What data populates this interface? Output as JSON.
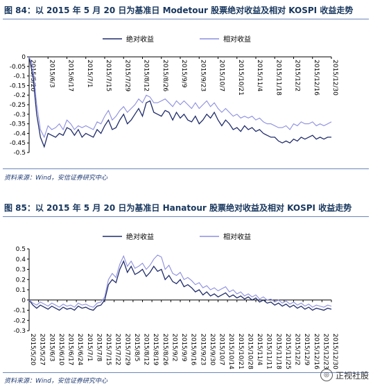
{
  "chart_data": [
    {
      "type": "line",
      "title": "图 84：以 2015 年 5 月 20 日为基准日 Modetour 股票绝对收益及相对 KOSPI 收益走势",
      "source": "资料来源：Wind，安信证券研究中心",
      "legend_position": "top-center",
      "ylim": [
        -0.5,
        0
      ],
      "yticks": [
        "0",
        "-0.05",
        "-0.1",
        "-0.15",
        "-0.2",
        "-0.25",
        "-0.3",
        "-0.35",
        "-0.4",
        "-0.45",
        "-0.5"
      ],
      "xticks": [
        "2015/5/20",
        "2015/6/3",
        "2015/6/17",
        "2015/7/1",
        "2015/7/15",
        "2015/7/29",
        "2015/8/12",
        "2015/8/26",
        "2015/9/9",
        "2015/9/23",
        "2015/10/7",
        "2015/10/21",
        "2015/11/4",
        "2015/11/18",
        "2015/12/2",
        "2015/12/16",
        "2015/12/30"
      ],
      "x": [
        "2015/5/20",
        "2015/5/22",
        "2015/5/26",
        "2015/5/28",
        "2015/6/1",
        "2015/6/3",
        "2015/6/5",
        "2015/6/9",
        "2015/6/11",
        "2015/6/15",
        "2015/6/17",
        "2015/6/19",
        "2015/6/23",
        "2015/6/25",
        "2015/6/29",
        "2015/7/1",
        "2015/7/3",
        "2015/7/7",
        "2015/7/9",
        "2015/7/13",
        "2015/7/15",
        "2015/7/17",
        "2015/7/21",
        "2015/7/23",
        "2015/7/27",
        "2015/7/29",
        "2015/7/31",
        "2015/8/4",
        "2015/8/6",
        "2015/8/10",
        "2015/8/12",
        "2015/8/14",
        "2015/8/18",
        "2015/8/20",
        "2015/8/24",
        "2015/8/26",
        "2015/8/28",
        "2015/9/1",
        "2015/9/3",
        "2015/9/7",
        "2015/9/9",
        "2015/9/11",
        "2015/9/15",
        "2015/9/17",
        "2015/9/21",
        "2015/9/23",
        "2015/9/25",
        "2015/9/29",
        "2015/10/1",
        "2015/10/5",
        "2015/10/7",
        "2015/10/9",
        "2015/10/13",
        "2015/10/15",
        "2015/10/19",
        "2015/10/21",
        "2015/10/23",
        "2015/10/27",
        "2015/10/29",
        "2015/11/2",
        "2015/11/4",
        "2015/11/6",
        "2015/11/10",
        "2015/11/12",
        "2015/11/16",
        "2015/11/18",
        "2015/11/20",
        "2015/11/24",
        "2015/11/26",
        "2015/11/30",
        "2015/12/2",
        "2015/12/4",
        "2015/12/8",
        "2015/12/10",
        "2015/12/14",
        "2015/12/16",
        "2015/12/18",
        "2015/12/22",
        "2015/12/24",
        "2015/12/28",
        "2015/12/30"
      ],
      "series": [
        {
          "name": "绝对收益",
          "color": "#1f2b6b",
          "values": [
            0,
            -0.1,
            -0.3,
            -0.42,
            -0.47,
            -0.4,
            -0.41,
            -0.42,
            -0.4,
            -0.41,
            -0.37,
            -0.38,
            -0.41,
            -0.38,
            -0.42,
            -0.4,
            -0.41,
            -0.42,
            -0.38,
            -0.4,
            -0.36,
            -0.33,
            -0.38,
            -0.37,
            -0.33,
            -0.3,
            -0.35,
            -0.33,
            -0.3,
            -0.27,
            -0.31,
            -0.24,
            -0.23,
            -0.29,
            -0.3,
            -0.31,
            -0.28,
            -0.29,
            -0.33,
            -0.29,
            -0.32,
            -0.3,
            -0.33,
            -0.34,
            -0.31,
            -0.35,
            -0.33,
            -0.3,
            -0.32,
            -0.29,
            -0.33,
            -0.36,
            -0.33,
            -0.35,
            -0.38,
            -0.37,
            -0.39,
            -0.36,
            -0.38,
            -0.37,
            -0.39,
            -0.38,
            -0.4,
            -0.41,
            -0.42,
            -0.42,
            -0.44,
            -0.45,
            -0.44,
            -0.45,
            -0.43,
            -0.44,
            -0.42,
            -0.43,
            -0.42,
            -0.41,
            -0.43,
            -0.42,
            -0.43,
            -0.42,
            -0.42
          ]
        },
        {
          "name": "相对收益",
          "color": "#8b8ee0",
          "values": [
            0,
            -0.05,
            -0.25,
            -0.38,
            -0.42,
            -0.36,
            -0.38,
            -0.37,
            -0.35,
            -0.38,
            -0.33,
            -0.35,
            -0.38,
            -0.36,
            -0.37,
            -0.36,
            -0.37,
            -0.38,
            -0.34,
            -0.35,
            -0.31,
            -0.28,
            -0.33,
            -0.31,
            -0.28,
            -0.26,
            -0.29,
            -0.27,
            -0.25,
            -0.22,
            -0.24,
            -0.2,
            -0.21,
            -0.24,
            -0.24,
            -0.23,
            -0.22,
            -0.24,
            -0.26,
            -0.23,
            -0.25,
            -0.23,
            -0.25,
            -0.27,
            -0.24,
            -0.27,
            -0.25,
            -0.23,
            -0.26,
            -0.24,
            -0.27,
            -0.29,
            -0.27,
            -0.29,
            -0.31,
            -0.3,
            -0.32,
            -0.31,
            -0.32,
            -0.31,
            -0.33,
            -0.32,
            -0.34,
            -0.35,
            -0.35,
            -0.36,
            -0.37,
            -0.37,
            -0.36,
            -0.38,
            -0.35,
            -0.36,
            -0.34,
            -0.35,
            -0.35,
            -0.34,
            -0.36,
            -0.35,
            -0.36,
            -0.35,
            -0.34
          ]
        }
      ]
    },
    {
      "type": "line",
      "title": "图 85：以 2015 年 5 月 20 日为基准日 Hanatour 股票绝对收益及相对 KOSPI 收益走势",
      "source": "资料来源：Wind，安信证券研究中心",
      "legend_position": "top-center",
      "ylim": [
        -0.3,
        0.5
      ],
      "yticks": [
        "0.5",
        "0.4",
        "0.3",
        "0.2",
        "0.1",
        "0",
        "-0.1",
        "-0.2",
        "-0.3"
      ],
      "xticks": [
        "2015/5/20",
        "2015/5/27",
        "2015/6/3",
        "2015/6/10",
        "2015/6/17",
        "2015/6/24",
        "2015/7/1",
        "2015/7/8",
        "2015/7/15",
        "2015/7/22",
        "2015/7/29",
        "2015/8/5",
        "2015/8/12",
        "2015/8/19",
        "2015/8/26",
        "2015/9/2",
        "2015/9/9",
        "2015/9/16",
        "2015/9/23",
        "2015/9/30",
        "2015/10/7",
        "2015/10/14",
        "2015/10/21",
        "2015/10/28",
        "2015/11/4",
        "2015/11/11",
        "2015/11/18",
        "2015/11/25",
        "2015/12/2",
        "2015/12/9",
        "2015/12/16",
        "2015/12/23",
        "2015/12/30"
      ],
      "x": [
        "2015/5/20",
        "2015/5/22",
        "2015/5/26",
        "2015/5/28",
        "2015/6/1",
        "2015/6/3",
        "2015/6/5",
        "2015/6/9",
        "2015/6/11",
        "2015/6/15",
        "2015/6/17",
        "2015/6/19",
        "2015/6/23",
        "2015/6/25",
        "2015/6/29",
        "2015/7/1",
        "2015/7/3",
        "2015/7/7",
        "2015/7/9",
        "2015/7/13",
        "2015/7/15",
        "2015/7/17",
        "2015/7/21",
        "2015/7/23",
        "2015/7/27",
        "2015/7/29",
        "2015/7/31",
        "2015/8/4",
        "2015/8/6",
        "2015/8/10",
        "2015/8/12",
        "2015/8/14",
        "2015/8/18",
        "2015/8/20",
        "2015/8/24",
        "2015/8/26",
        "2015/8/28",
        "2015/9/1",
        "2015/9/3",
        "2015/9/7",
        "2015/9/9",
        "2015/9/11",
        "2015/9/15",
        "2015/9/17",
        "2015/9/21",
        "2015/9/23",
        "2015/9/25",
        "2015/9/29",
        "2015/10/1",
        "2015/10/5",
        "2015/10/7",
        "2015/10/9",
        "2015/10/13",
        "2015/10/15",
        "2015/10/19",
        "2015/10/21",
        "2015/10/23",
        "2015/10/27",
        "2015/10/29",
        "2015/11/2",
        "2015/11/4",
        "2015/11/6",
        "2015/11/10",
        "2015/11/12",
        "2015/11/16",
        "2015/11/18",
        "2015/11/20",
        "2015/11/24",
        "2015/11/26",
        "2015/11/30",
        "2015/12/2",
        "2015/12/4",
        "2015/12/8",
        "2015/12/10",
        "2015/12/14",
        "2015/12/16",
        "2015/12/18",
        "2015/12/22",
        "2015/12/24",
        "2015/12/28",
        "2015/12/30"
      ],
      "series": [
        {
          "name": "绝对收益",
          "color": "#1f2b6b",
          "values": [
            0,
            -0.05,
            -0.08,
            -0.05,
            -0.07,
            -0.09,
            -0.06,
            -0.08,
            -0.1,
            -0.07,
            -0.09,
            -0.08,
            -0.1,
            -0.06,
            -0.08,
            -0.07,
            -0.09,
            -0.1,
            -0.06,
            -0.05,
            0,
            0.15,
            0.2,
            0.17,
            0.3,
            0.38,
            0.27,
            0.33,
            0.25,
            0.27,
            0.3,
            0.23,
            0.27,
            0.33,
            0.28,
            0.3,
            0.2,
            0.24,
            0.18,
            0.16,
            0.2,
            0.13,
            0.15,
            0.12,
            0.08,
            0.1,
            0.05,
            0.08,
            0.04,
            0.06,
            0.03,
            0.05,
            0.07,
            0.03,
            0.05,
            0.02,
            0.04,
            0.01,
            0.03,
            0,
            0.02,
            -0.02,
            0,
            -0.03,
            -0.02,
            -0.05,
            -0.03,
            -0.06,
            -0.04,
            -0.07,
            -0.05,
            -0.08,
            -0.06,
            -0.09,
            -0.07,
            -0.1,
            -0.08,
            -0.09,
            -0.1,
            -0.08,
            -0.09
          ]
        },
        {
          "name": "相对收益",
          "color": "#8b8ee0",
          "values": [
            0,
            -0.03,
            -0.05,
            -0.02,
            -0.04,
            -0.06,
            -0.03,
            -0.05,
            -0.07,
            -0.04,
            -0.06,
            -0.05,
            -0.07,
            -0.03,
            -0.05,
            -0.04,
            -0.06,
            -0.07,
            -0.03,
            -0.02,
            0.03,
            0.2,
            0.26,
            0.22,
            0.35,
            0.43,
            0.33,
            0.38,
            0.31,
            0.33,
            0.36,
            0.3,
            0.34,
            0.4,
            0.44,
            0.42,
            0.3,
            0.34,
            0.26,
            0.24,
            0.27,
            0.2,
            0.22,
            0.19,
            0.15,
            0.17,
            0.12,
            0.14,
            0.1,
            0.12,
            0.09,
            0.11,
            0.13,
            0.08,
            0.1,
            0.06,
            0.08,
            0.04,
            0.06,
            0.03,
            0.05,
            0.01,
            0.03,
            0,
            0.01,
            -0.02,
            0,
            -0.03,
            -0.01,
            -0.04,
            -0.02,
            -0.05,
            -0.03,
            -0.06,
            -0.04,
            -0.07,
            -0.05,
            -0.06,
            -0.07,
            -0.05,
            -0.06
          ]
        }
      ]
    }
  ],
  "watermark": {
    "label": "正视社股",
    "icon": "wechat-icon"
  }
}
